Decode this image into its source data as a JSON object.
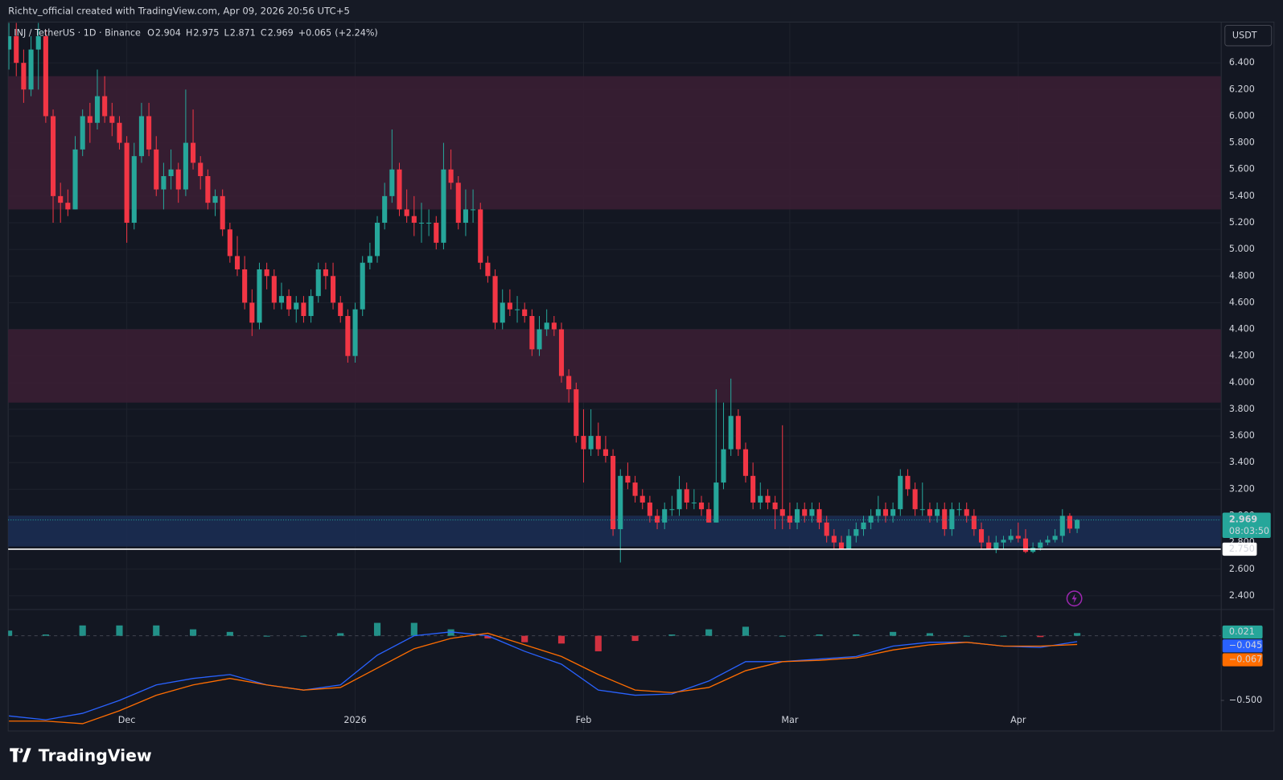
{
  "header": "Richtv_official created with TradingView.com, Apr 09, 2026 20:56 UTC+5",
  "brand": "TradingView",
  "chart_data": {
    "type": "candlestick",
    "symbol": "INJ / TetherUS · 1D · Binance",
    "currency": "USDT",
    "ohlc_labels": [
      "O",
      "H",
      "L",
      "C"
    ],
    "ohlc": [
      2.904,
      2.975,
      2.871,
      2.969
    ],
    "change": 0.065,
    "change_label": "+0.065",
    "change_pct_label": "(+2.24%)",
    "up_color": "#26a69a",
    "down_color": "#f23645",
    "grid": true,
    "ylim": [
      2.3,
      6.7
    ],
    "yticks": [
      {
        "value": 2.4,
        "label": "2.400"
      },
      {
        "value": 2.6,
        "label": "2.600"
      },
      {
        "value": 2.8,
        "label": "2.800"
      },
      {
        "value": 3.0,
        "label": "3.000"
      },
      {
        "value": 3.2,
        "label": "3.200"
      },
      {
        "value": 3.4,
        "label": "3.400"
      },
      {
        "value": 3.6,
        "label": "3.600"
      },
      {
        "value": 3.8,
        "label": "3.800"
      },
      {
        "value": 4.0,
        "label": "4.000"
      },
      {
        "value": 4.2,
        "label": "4.200"
      },
      {
        "value": 4.4,
        "label": "4.400"
      },
      {
        "value": 4.6,
        "label": "4.600"
      },
      {
        "value": 4.8,
        "label": "4.800"
      },
      {
        "value": 5.0,
        "label": "5.000"
      },
      {
        "value": 5.2,
        "label": "5.200"
      },
      {
        "value": 5.4,
        "label": "5.400"
      },
      {
        "value": 5.6,
        "label": "5.600"
      },
      {
        "value": 5.8,
        "label": "5.800"
      },
      {
        "value": 6.0,
        "label": "6.000"
      },
      {
        "value": 6.2,
        "label": "6.200"
      },
      {
        "value": 6.4,
        "label": "6.400"
      }
    ],
    "xlim": [
      -0.1,
      164.5
    ],
    "xticks": [
      {
        "value": 16,
        "label": "Dec"
      },
      {
        "value": 47,
        "label": "2026"
      },
      {
        "value": 78,
        "label": "Feb"
      },
      {
        "value": 106,
        "label": "Mar"
      },
      {
        "value": 137,
        "label": "Apr"
      }
    ],
    "zones": [
      {
        "from": 5.3,
        "to": 6.3,
        "color": "#3a1e33"
      },
      {
        "from": 3.85,
        "to": 4.4,
        "color": "#3a1e33"
      },
      {
        "from": 2.77,
        "to": 3.0,
        "color": "#1b2c52"
      }
    ],
    "level": {
      "value": 2.75,
      "label": "2.750"
    },
    "last_price": 2.969,
    "countdown": "08:03:50",
    "candles": [
      [
        6.5,
        6.7,
        6.35,
        6.6
      ],
      [
        6.6,
        6.7,
        6.3,
        6.4
      ],
      [
        6.4,
        6.5,
        6.1,
        6.2
      ],
      [
        6.2,
        6.6,
        6.15,
        6.5
      ],
      [
        6.5,
        6.7,
        6.2,
        6.6
      ],
      [
        6.6,
        6.65,
        5.95,
        6.0
      ],
      [
        6.0,
        6.05,
        5.2,
        5.4
      ],
      [
        5.4,
        5.5,
        5.2,
        5.35
      ],
      [
        5.35,
        5.45,
        5.25,
        5.3
      ],
      [
        5.3,
        5.85,
        5.3,
        5.75
      ],
      [
        5.75,
        6.05,
        5.7,
        6.0
      ],
      [
        6.0,
        6.1,
        5.8,
        5.95
      ],
      [
        5.95,
        6.35,
        5.9,
        6.15
      ],
      [
        6.15,
        6.3,
        5.95,
        6.0
      ],
      [
        6.0,
        6.1,
        5.85,
        5.95
      ],
      [
        5.95,
        6.0,
        5.75,
        5.8
      ],
      [
        5.8,
        5.85,
        5.05,
        5.2
      ],
      [
        5.2,
        5.8,
        5.15,
        5.7
      ],
      [
        5.7,
        6.1,
        5.65,
        6.0
      ],
      [
        6.0,
        6.1,
        5.7,
        5.75
      ],
      [
        5.75,
        5.85,
        5.4,
        5.45
      ],
      [
        5.45,
        5.65,
        5.3,
        5.55
      ],
      [
        5.55,
        5.75,
        5.45,
        5.6
      ],
      [
        5.6,
        5.65,
        5.35,
        5.45
      ],
      [
        5.45,
        6.2,
        5.4,
        5.8
      ],
      [
        5.8,
        6.05,
        5.6,
        5.65
      ],
      [
        5.65,
        5.7,
        5.45,
        5.55
      ],
      [
        5.55,
        5.6,
        5.3,
        5.35
      ],
      [
        5.35,
        5.45,
        5.25,
        5.4
      ],
      [
        5.4,
        5.45,
        5.1,
        5.15
      ],
      [
        5.15,
        5.2,
        4.9,
        4.95
      ],
      [
        4.95,
        5.1,
        4.8,
        4.85
      ],
      [
        4.85,
        4.95,
        4.55,
        4.6
      ],
      [
        4.6,
        4.7,
        4.35,
        4.45
      ],
      [
        4.45,
        4.9,
        4.4,
        4.85
      ],
      [
        4.85,
        4.9,
        4.7,
        4.8
      ],
      [
        4.8,
        4.85,
        4.55,
        4.6
      ],
      [
        4.6,
        4.75,
        4.55,
        4.65
      ],
      [
        4.65,
        4.7,
        4.5,
        4.55
      ],
      [
        4.55,
        4.65,
        4.45,
        4.6
      ],
      [
        4.6,
        4.65,
        4.45,
        4.5
      ],
      [
        4.5,
        4.7,
        4.45,
        4.65
      ],
      [
        4.65,
        4.9,
        4.6,
        4.85
      ],
      [
        4.85,
        4.9,
        4.7,
        4.8
      ],
      [
        4.8,
        4.9,
        4.55,
        4.6
      ],
      [
        4.6,
        4.65,
        4.45,
        4.5
      ],
      [
        4.5,
        4.55,
        4.15,
        4.2
      ],
      [
        4.2,
        4.6,
        4.15,
        4.55
      ],
      [
        4.55,
        4.95,
        4.5,
        4.9
      ],
      [
        4.9,
        5.05,
        4.85,
        4.95
      ],
      [
        4.95,
        5.25,
        4.9,
        5.2
      ],
      [
        5.2,
        5.5,
        5.15,
        5.4
      ],
      [
        5.4,
        5.9,
        5.35,
        5.6
      ],
      [
        5.6,
        5.65,
        5.25,
        5.3
      ],
      [
        5.3,
        5.45,
        5.2,
        5.25
      ],
      [
        5.25,
        5.4,
        5.1,
        5.2
      ],
      [
        5.2,
        5.35,
        5.05,
        5.2
      ],
      [
        5.2,
        5.3,
        5.1,
        5.2
      ],
      [
        5.2,
        5.25,
        5.0,
        5.05
      ],
      [
        5.05,
        5.8,
        5.0,
        5.6
      ],
      [
        5.6,
        5.75,
        5.45,
        5.5
      ],
      [
        5.5,
        5.55,
        5.15,
        5.2
      ],
      [
        5.2,
        5.45,
        5.1,
        5.3
      ],
      [
        5.3,
        5.45,
        5.2,
        5.3
      ],
      [
        5.3,
        5.35,
        4.85,
        4.9
      ],
      [
        4.9,
        4.95,
        4.75,
        4.8
      ],
      [
        4.8,
        4.85,
        4.4,
        4.45
      ],
      [
        4.45,
        4.7,
        4.4,
        4.6
      ],
      [
        4.6,
        4.7,
        4.5,
        4.55
      ],
      [
        4.55,
        4.65,
        4.45,
        4.55
      ],
      [
        4.55,
        4.6,
        4.45,
        4.5
      ],
      [
        4.5,
        4.55,
        4.2,
        4.25
      ],
      [
        4.25,
        4.5,
        4.2,
        4.4
      ],
      [
        4.4,
        4.55,
        4.35,
        4.45
      ],
      [
        4.45,
        4.5,
        4.35,
        4.4
      ],
      [
        4.4,
        4.45,
        4.0,
        4.05
      ],
      [
        4.05,
        4.1,
        3.85,
        3.95
      ],
      [
        3.95,
        4.0,
        3.55,
        3.6
      ],
      [
        3.6,
        3.8,
        3.25,
        3.5
      ],
      [
        3.5,
        3.8,
        3.45,
        3.6
      ],
      [
        3.6,
        3.7,
        3.45,
        3.5
      ],
      [
        3.5,
        3.6,
        3.4,
        3.45
      ],
      [
        3.45,
        3.5,
        2.85,
        2.9
      ],
      [
        2.9,
        3.35,
        2.65,
        3.3
      ],
      [
        3.3,
        3.4,
        3.2,
        3.25
      ],
      [
        3.25,
        3.3,
        3.1,
        3.15
      ],
      [
        3.15,
        3.2,
        3.05,
        3.1
      ],
      [
        3.1,
        3.15,
        2.95,
        3.0
      ],
      [
        3.0,
        3.05,
        2.9,
        2.95
      ],
      [
        2.95,
        3.1,
        2.9,
        3.05
      ],
      [
        3.05,
        3.15,
        3.0,
        3.05
      ],
      [
        3.05,
        3.3,
        3.0,
        3.2
      ],
      [
        3.2,
        3.25,
        3.05,
        3.1
      ],
      [
        3.1,
        3.2,
        3.05,
        3.1
      ],
      [
        3.1,
        3.15,
        3.0,
        3.05
      ],
      [
        3.05,
        3.1,
        2.95,
        2.95
      ],
      [
        2.95,
        3.95,
        2.95,
        3.25
      ],
      [
        3.25,
        3.85,
        3.2,
        3.5
      ],
      [
        3.5,
        4.03,
        3.45,
        3.75
      ],
      [
        3.75,
        3.8,
        3.45,
        3.5
      ],
      [
        3.5,
        3.55,
        3.25,
        3.3
      ],
      [
        3.3,
        3.4,
        3.05,
        3.1
      ],
      [
        3.1,
        3.25,
        3.05,
        3.15
      ],
      [
        3.15,
        3.2,
        3.05,
        3.1
      ],
      [
        3.1,
        3.15,
        2.9,
        3.05
      ],
      [
        3.05,
        3.68,
        2.9,
        3.0
      ],
      [
        3.0,
        3.1,
        2.9,
        2.95
      ],
      [
        2.95,
        3.1,
        2.9,
        3.05
      ],
      [
        3.05,
        3.1,
        2.95,
        3.0
      ],
      [
        3.0,
        3.1,
        2.95,
        3.05
      ],
      [
        3.05,
        3.1,
        2.9,
        2.95
      ],
      [
        2.95,
        3.0,
        2.8,
        2.85
      ],
      [
        2.85,
        2.9,
        2.75,
        2.8
      ],
      [
        2.8,
        2.85,
        2.75,
        2.75
      ],
      [
        2.75,
        2.9,
        2.75,
        2.85
      ],
      [
        2.85,
        2.95,
        2.8,
        2.9
      ],
      [
        2.9,
        3.0,
        2.85,
        2.95
      ],
      [
        2.95,
        3.05,
        2.9,
        3.0
      ],
      [
        3.0,
        3.15,
        2.95,
        3.05
      ],
      [
        3.05,
        3.1,
        2.95,
        3.0
      ],
      [
        3.0,
        3.1,
        2.95,
        3.05
      ],
      [
        3.05,
        3.35,
        3.0,
        3.3
      ],
      [
        3.3,
        3.35,
        3.15,
        3.2
      ],
      [
        3.2,
        3.25,
        3.0,
        3.05
      ],
      [
        3.05,
        3.25,
        3.0,
        3.05
      ],
      [
        3.05,
        3.1,
        2.95,
        3.0
      ],
      [
        3.0,
        3.1,
        2.95,
        3.05
      ],
      [
        3.05,
        3.1,
        2.85,
        2.9
      ],
      [
        2.9,
        3.1,
        2.85,
        3.05
      ],
      [
        3.05,
        3.1,
        3.0,
        3.05
      ],
      [
        3.05,
        3.1,
        2.95,
        3.0
      ],
      [
        3.0,
        3.05,
        2.85,
        2.9
      ],
      [
        2.9,
        2.95,
        2.75,
        2.8
      ],
      [
        2.8,
        2.85,
        2.75,
        2.75
      ],
      [
        2.75,
        2.85,
        2.72,
        2.8
      ],
      [
        2.8,
        2.85,
        2.75,
        2.82
      ],
      [
        2.82,
        2.9,
        2.8,
        2.85
      ],
      [
        2.85,
        2.95,
        2.8,
        2.83
      ],
      [
        2.83,
        2.9,
        2.72,
        2.73
      ],
      [
        2.73,
        2.8,
        2.72,
        2.76
      ],
      [
        2.76,
        2.82,
        2.74,
        2.8
      ],
      [
        2.8,
        2.85,
        2.78,
        2.82
      ],
      [
        2.82,
        2.9,
        2.8,
        2.85
      ],
      [
        2.85,
        3.05,
        2.8,
        3.0
      ],
      [
        3.0,
        3.02,
        2.87,
        2.904
      ],
      [
        2.904,
        2.975,
        2.871,
        2.969
      ]
    ],
    "macd": {
      "y2lim": [
        -0.73,
        0.2
      ],
      "y2ticks": [
        {
          "value": -0.5,
          "label": "−0.500"
        }
      ],
      "x": [
        0,
        5,
        10,
        15,
        20,
        25,
        30,
        35,
        40,
        45,
        50,
        55,
        60,
        65,
        70,
        75,
        80,
        85,
        90,
        95,
        100,
        105,
        110,
        115,
        120,
        125,
        130,
        135,
        140,
        145
      ],
      "series": [
        {
          "name": "Histogram",
          "color": "#26a69a",
          "values": [
            0.04,
            0.01,
            0.08,
            0.08,
            0.08,
            0.05,
            0.03,
            0.0,
            0.0,
            0.02,
            0.1,
            0.1,
            0.05,
            -0.02,
            -0.05,
            -0.06,
            -0.12,
            -0.04,
            0.01,
            0.05,
            0.07,
            0.0,
            0.01,
            0.01,
            0.03,
            0.02,
            0.0,
            0.0,
            -0.01,
            0.021
          ],
          "value_labels_last": "0.021"
        },
        {
          "name": "MACD",
          "color": "#2962ff",
          "values": [
            -0.62,
            -0.65,
            -0.6,
            -0.5,
            -0.38,
            -0.33,
            -0.3,
            -0.38,
            -0.42,
            -0.38,
            -0.15,
            0.0,
            0.03,
            0.0,
            -0.12,
            -0.22,
            -0.42,
            -0.46,
            -0.45,
            -0.35,
            -0.2,
            -0.2,
            -0.18,
            -0.16,
            -0.08,
            -0.05,
            -0.05,
            -0.08,
            -0.09,
            -0.045
          ],
          "value_labels_last": "−0.045"
        },
        {
          "name": "Signal",
          "color": "#ff6d00",
          "values": [
            -0.66,
            -0.66,
            -0.68,
            -0.58,
            -0.46,
            -0.38,
            -0.33,
            -0.38,
            -0.42,
            -0.4,
            -0.25,
            -0.1,
            -0.02,
            0.02,
            -0.07,
            -0.16,
            -0.3,
            -0.42,
            -0.44,
            -0.4,
            -0.27,
            -0.2,
            -0.19,
            -0.17,
            -0.11,
            -0.07,
            -0.05,
            -0.08,
            -0.08,
            -0.067
          ],
          "value_labels_last": "−0.067"
        }
      ]
    }
  }
}
